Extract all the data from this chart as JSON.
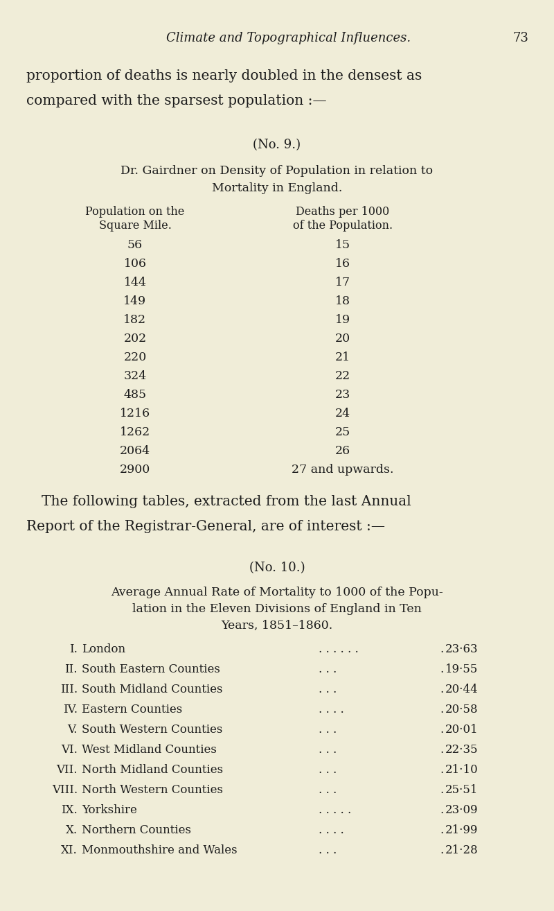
{
  "bg_color": "#f0edd8",
  "page_title_italic": "Climate and Topographical Influences.",
  "page_number": "73",
  "intro_lines": [
    "proportion of deaths is nearly doubled in the densest as",
    "compared with the sparsest population :—"
  ],
  "no9_label": "(No. 9.)",
  "table1_title_line1": "Dr. Gairdner on Density of Population in relation to",
  "table1_title_line2": "Mortality in England.",
  "table1_col1_header_line1": "Population on the",
  "table1_col1_header_line2": "Square Mile.",
  "table1_col2_header_line1": "Deaths per 1000",
  "table1_col2_header_line2": "of the Population.",
  "table1_data": [
    [
      "56",
      "15"
    ],
    [
      "106",
      "16"
    ],
    [
      "144",
      "17"
    ],
    [
      "149",
      "18"
    ],
    [
      "182",
      "19"
    ],
    [
      "202",
      "20"
    ],
    [
      "220",
      "21"
    ],
    [
      "324",
      "22"
    ],
    [
      "485",
      "23"
    ],
    [
      "1216",
      "24"
    ],
    [
      "1262",
      "25"
    ],
    [
      "2064",
      "26"
    ],
    [
      "2900",
      "27 and upwards."
    ]
  ],
  "between_text_lines": [
    "The following tables, extracted from the last Annual",
    "Report of the Registrar-General, are of interest :—"
  ],
  "no10_label": "(No. 10.)",
  "table2_title_line1": "Average Annual Rate of Mortality to 1000 of the Popu-",
  "table2_title_line2": "lation in the Eleven Divisions of England in Ten",
  "table2_title_line3": "Years, 1851–1860.",
  "table2_data": [
    [
      "I.",
      "London",
      ". . . . . .",
      "23·63"
    ],
    [
      "II.",
      "South Eastern Counties",
      ". . .",
      "19·55"
    ],
    [
      "III.",
      "South Midland Counties",
      ". . .",
      "20·44"
    ],
    [
      "IV.",
      "Eastern Counties",
      ". . . .",
      "20·58"
    ],
    [
      "V.",
      "South Western Counties",
      ". . .",
      "20·01"
    ],
    [
      "VI.",
      "West Midland Counties",
      ". . .",
      "22·35"
    ],
    [
      "VII.",
      "North Midland Counties",
      ". . .",
      "21·10"
    ],
    [
      "VIII.",
      "North Western Counties",
      ". . .",
      "25·51"
    ],
    [
      "IX.",
      "Yorkshire",
      ". . . . .",
      "23·09"
    ],
    [
      "X.",
      "Northern Counties",
      ". . . .",
      "21·99"
    ],
    [
      "XI.",
      "Monmouthshire and Wales",
      ". . .",
      "21·28"
    ]
  ],
  "text_color": "#1c1c1c"
}
